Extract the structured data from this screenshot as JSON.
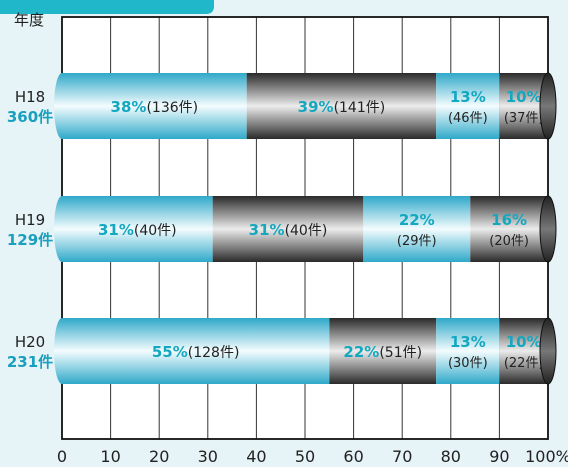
{
  "chart_data": {
    "type": "bar",
    "orientation": "horizontal",
    "stacked": true,
    "normalized": true,
    "ylabel": "年度",
    "xlim": [
      0,
      100
    ],
    "xticks": [
      "0",
      "10",
      "20",
      "30",
      "40",
      "50",
      "60",
      "70",
      "80",
      "90",
      "100%"
    ],
    "grid": true,
    "categories": [
      {
        "year": "H18",
        "total": "360件"
      },
      {
        "year": "H19",
        "total": "129件"
      },
      {
        "year": "H20",
        "total": "231件"
      }
    ],
    "segments": [
      [
        {
          "pct": 38,
          "pct_label": "38%",
          "count_label": "(136件)",
          "style": "cyan",
          "layout": "inline"
        },
        {
          "pct": 39,
          "pct_label": "39%",
          "count_label": "(141件)",
          "style": "dark",
          "layout": "inline"
        },
        {
          "pct": 13,
          "pct_label": "13%",
          "count_label": "(46件)",
          "style": "cyan",
          "layout": "stack"
        },
        {
          "pct": 10,
          "pct_label": "10%",
          "count_label": "(37件)",
          "style": "dark",
          "layout": "stack"
        }
      ],
      [
        {
          "pct": 31,
          "pct_label": "31%",
          "count_label": "(40件)",
          "style": "cyan",
          "layout": "inline"
        },
        {
          "pct": 31,
          "pct_label": "31%",
          "count_label": "(40件)",
          "style": "dark",
          "layout": "inline"
        },
        {
          "pct": 22,
          "pct_label": "22%",
          "count_label": "(29件)",
          "style": "cyan",
          "layout": "stack"
        },
        {
          "pct": 16,
          "pct_label": "16%",
          "count_label": "(20件)",
          "style": "dark",
          "layout": "stack"
        }
      ],
      [
        {
          "pct": 55,
          "pct_label": "55%",
          "count_label": "(128件)",
          "style": "cyan",
          "layout": "inline"
        },
        {
          "pct": 22,
          "pct_label": "22%",
          "count_label": "(51件)",
          "style": "dark",
          "layout": "inline"
        },
        {
          "pct": 13,
          "pct_label": "13%",
          "count_label": "(30件)",
          "style": "cyan",
          "layout": "stack"
        },
        {
          "pct": 10,
          "pct_label": "10%",
          "count_label": "(22件)",
          "style": "dark",
          "layout": "stack"
        }
      ]
    ]
  },
  "colors": {
    "background": "#e6f3f7",
    "plot": "#ffffff",
    "accent_teal": "#1fb7c9",
    "pct_text": "#14a8c0",
    "total_text": "#1aa0bf",
    "text": "#222222"
  }
}
